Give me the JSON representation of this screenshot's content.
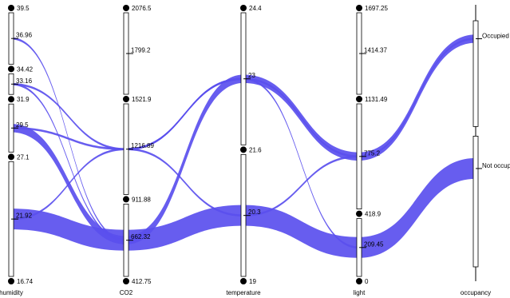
{
  "chart_data": {
    "type": "parallel_sets",
    "colors": {
      "ribbon": "#5a4fee"
    },
    "axes": [
      {
        "key": "humidity",
        "label": "humidity",
        "kind": "numeric",
        "min": 16.74,
        "max": 39.5,
        "endpoints": [
          "16.74",
          "39.5"
        ],
        "breaks": [
          34.42,
          31.9,
          27.1
        ],
        "break_labels": [
          "34.42",
          "31.9",
          "27.1"
        ],
        "ticks": [
          {
            "value": 36.96,
            "label": "36.96"
          },
          {
            "value": 33.16,
            "label": "33.16"
          },
          {
            "value": 29.5,
            "label": "29.5"
          },
          {
            "value": 21.92,
            "label": "21.92"
          }
        ]
      },
      {
        "key": "co2",
        "label": "CO2",
        "kind": "numeric",
        "min": 412.75,
        "max": 2076.5,
        "endpoints": [
          "412.75",
          "2076.5"
        ],
        "breaks": [
          1521.9,
          911.88
        ],
        "break_labels": [
          "1521.9",
          "911.88"
        ],
        "ticks": [
          {
            "value": 1799.2,
            "label": "1799.2"
          },
          {
            "value": 1216.89,
            "label": "1216.89"
          },
          {
            "value": 662.32,
            "label": "662.32"
          }
        ]
      },
      {
        "key": "temperature",
        "label": "temperature",
        "kind": "numeric",
        "min": 19,
        "max": 24.4,
        "endpoints": [
          "19",
          "24.4"
        ],
        "breaks": [
          21.6
        ],
        "break_labels": [
          "21.6"
        ],
        "ticks": [
          {
            "value": 23,
            "label": "23"
          },
          {
            "value": 20.3,
            "label": "20.3"
          }
        ]
      },
      {
        "key": "light",
        "label": "light",
        "kind": "numeric",
        "min": 0,
        "max": 1697.25,
        "endpoints": [
          "0",
          "1697.25"
        ],
        "breaks": [
          1131.49,
          418.9
        ],
        "break_labels": [
          "1131.49",
          "418.9"
        ],
        "ticks": [
          {
            "value": 1414.37,
            "label": "1414.37"
          },
          {
            "value": 775.2,
            "label": "775.2"
          },
          {
            "value": 209.45,
            "label": "209.45"
          }
        ]
      },
      {
        "key": "occupancy",
        "label": "occupancy",
        "kind": "categorical",
        "categories": [
          "Occupied",
          "Not occupied"
        ],
        "category_shares": [
          0.45,
          0.55
        ]
      }
    ],
    "flows": [
      {
        "values": [
          21.92,
          662.32,
          20.3,
          209.45,
          "Not occupied"
        ],
        "weight": 10
      },
      {
        "values": [
          29.5,
          662.32,
          23,
          775.2,
          "Occupied"
        ],
        "weight": 4
      },
      {
        "values": [
          36.96,
          662.32
        ],
        "weight": 1
      },
      {
        "values": [
          33.16,
          1216.89,
          23,
          775.2,
          "Occupied"
        ],
        "weight": 1
      },
      {
        "values": [
          33.16,
          662.32
        ],
        "weight": 1
      },
      {
        "values": [
          29.5,
          1216.89,
          23
        ],
        "weight": 1
      },
      {
        "values": [
          21.92,
          1216.89,
          23
        ],
        "weight": 1
      },
      {
        "values": [
          1216.89,
          20.3,
          775.2
        ],
        "weight": 1
      },
      {
        "values": [
          23,
          209.45
        ],
        "weight": 1
      }
    ]
  }
}
